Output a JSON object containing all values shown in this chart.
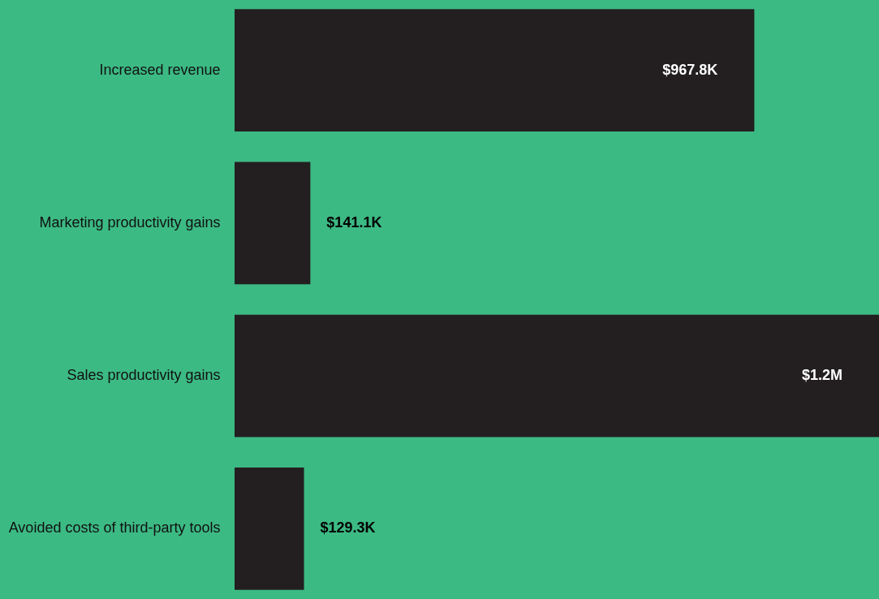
{
  "chart_data": {
    "type": "bar",
    "orientation": "horizontal",
    "categories": [
      "Increased revenue",
      "Marketing productivity gains",
      "Sales productivity gains",
      "Avoided costs of third-party tools"
    ],
    "values": [
      967800,
      141100,
      1200000,
      129300
    ],
    "value_labels": [
      "$967.8K",
      "$141.1K",
      "$1.2M",
      "$129.3K"
    ],
    "color": "#231f20"
  }
}
